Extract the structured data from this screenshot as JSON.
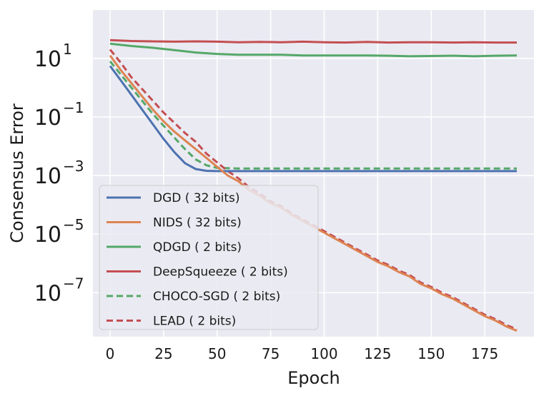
{
  "chart_data": {
    "type": "line",
    "title": "",
    "xlabel": "Epoch",
    "ylabel": "Consensus Error",
    "xlim": [
      -8,
      198
    ],
    "ylim_log10": [
      -8.5,
      2.65
    ],
    "y_scale": "log",
    "x_ticks": [
      0,
      25,
      50,
      75,
      100,
      125,
      150,
      175
    ],
    "x_tick_labels": [
      "0",
      "25",
      "50",
      "75",
      "100",
      "125",
      "150",
      "175"
    ],
    "y_ticks_log10": [
      1,
      -1,
      -3,
      -5,
      -7
    ],
    "y_tick_labels": [
      {
        "base": "10",
        "exp": "1"
      },
      {
        "base": "10",
        "exp": "−1"
      },
      {
        "base": "10",
        "exp": "−3"
      },
      {
        "base": "10",
        "exp": "−5"
      },
      {
        "base": "10",
        "exp": "−7"
      }
    ],
    "grid": true,
    "legend_position": "lower-left",
    "series": [
      {
        "name": "DGD ( 32 bits)",
        "color": "#4c72b0",
        "dash": "solid",
        "x": [
          0,
          5,
          10,
          15,
          20,
          25,
          30,
          35,
          40,
          45,
          50,
          60,
          80,
          100,
          125,
          150,
          175,
          190
        ],
        "log10_y": [
          0.74,
          0.25,
          -0.25,
          -0.75,
          -1.25,
          -1.75,
          -2.2,
          -2.58,
          -2.78,
          -2.84,
          -2.85,
          -2.85,
          -2.85,
          -2.85,
          -2.85,
          -2.85,
          -2.85,
          -2.85
        ]
      },
      {
        "name": "NIDS ( 32 bits)",
        "color": "#dd8452",
        "dash": "solid",
        "x": [
          0,
          5,
          10,
          15,
          20,
          25,
          30,
          35,
          40,
          45,
          50,
          55,
          60,
          65,
          70,
          75,
          80,
          85,
          90,
          95,
          100,
          105,
          110,
          115,
          120,
          125,
          130,
          135,
          140,
          145,
          150,
          155,
          160,
          165,
          170,
          175,
          180,
          185,
          190
        ],
        "log10_y": [
          1.1,
          0.6,
          0.15,
          -0.3,
          -0.75,
          -1.15,
          -1.5,
          -1.8,
          -2.1,
          -2.4,
          -2.7,
          -3.0,
          -3.2,
          -3.5,
          -3.7,
          -3.95,
          -4.1,
          -4.35,
          -4.55,
          -4.75,
          -4.95,
          -5.15,
          -5.35,
          -5.55,
          -5.75,
          -5.95,
          -6.1,
          -6.3,
          -6.45,
          -6.7,
          -6.85,
          -7.05,
          -7.2,
          -7.4,
          -7.6,
          -7.8,
          -7.95,
          -8.15,
          -8.3
        ]
      },
      {
        "name": "QDGD ( 2 bits)",
        "color": "#55a868",
        "dash": "solid",
        "x": [
          0,
          10,
          20,
          30,
          40,
          50,
          60,
          70,
          80,
          90,
          100,
          110,
          120,
          130,
          140,
          150,
          160,
          170,
          180,
          190
        ],
        "log10_y": [
          1.5,
          1.42,
          1.36,
          1.28,
          1.2,
          1.15,
          1.12,
          1.12,
          1.12,
          1.1,
          1.1,
          1.1,
          1.1,
          1.09,
          1.07,
          1.08,
          1.09,
          1.07,
          1.09,
          1.1
        ]
      },
      {
        "name": "DeepSqueeze ( 2 bits)",
        "color": "#c44e52",
        "dash": "solid",
        "x": [
          0,
          10,
          20,
          30,
          40,
          50,
          60,
          70,
          80,
          90,
          100,
          110,
          120,
          130,
          140,
          150,
          160,
          170,
          180,
          190
        ],
        "log10_y": [
          1.62,
          1.59,
          1.58,
          1.57,
          1.58,
          1.57,
          1.55,
          1.56,
          1.55,
          1.57,
          1.55,
          1.54,
          1.56,
          1.54,
          1.55,
          1.55,
          1.54,
          1.55,
          1.54,
          1.54
        ]
      },
      {
        "name": "CHOCO-SGD ( 2 bits)",
        "color": "#55a868",
        "dash": "dashed",
        "x": [
          0,
          5,
          10,
          15,
          20,
          25,
          30,
          35,
          40,
          45,
          50,
          60,
          80,
          100,
          125,
          150,
          175,
          190
        ],
        "log10_y": [
          0.9,
          0.45,
          0.0,
          -0.45,
          -0.9,
          -1.3,
          -1.7,
          -2.1,
          -2.45,
          -2.65,
          -2.74,
          -2.76,
          -2.76,
          -2.76,
          -2.76,
          -2.76,
          -2.76,
          -2.76
        ]
      },
      {
        "name": "LEAD ( 2 bits)",
        "color": "#c44e52",
        "dash": "dashed",
        "x": [
          0,
          5,
          10,
          15,
          20,
          25,
          30,
          35,
          40,
          45,
          50,
          55,
          60,
          65,
          70,
          75,
          80,
          85,
          90,
          95,
          100,
          105,
          110,
          115,
          120,
          125,
          130,
          135,
          140,
          145,
          150,
          155,
          160,
          165,
          170,
          175,
          180,
          185,
          190
        ],
        "log10_y": [
          1.3,
          0.85,
          0.35,
          -0.05,
          -0.45,
          -0.85,
          -1.2,
          -1.55,
          -1.85,
          -2.25,
          -2.55,
          -2.85,
          -3.1,
          -3.4,
          -3.62,
          -3.88,
          -4.05,
          -4.3,
          -4.5,
          -4.7,
          -4.9,
          -5.1,
          -5.3,
          -5.5,
          -5.7,
          -5.9,
          -6.05,
          -6.25,
          -6.4,
          -6.65,
          -6.8,
          -7.0,
          -7.15,
          -7.35,
          -7.55,
          -7.75,
          -7.9,
          -8.1,
          -8.25
        ]
      }
    ]
  }
}
